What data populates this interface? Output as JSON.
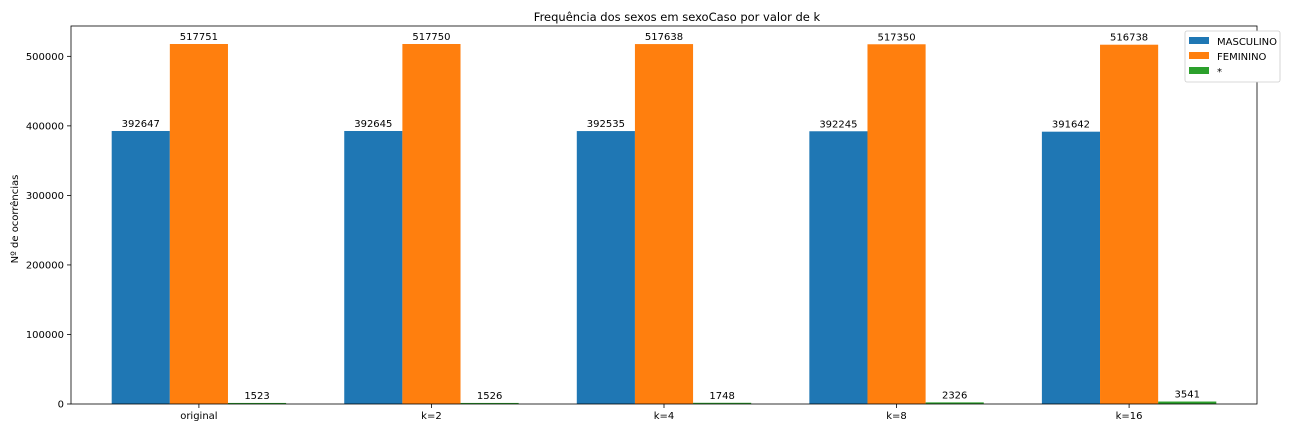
{
  "chart_data": {
    "type": "bar",
    "title": "Frequência dos sexos em sexoCaso por valor de k",
    "xlabel": "",
    "ylabel": "Nº de ocorrências",
    "categories": [
      "original",
      "k=2",
      "k=4",
      "k=8",
      "k=16"
    ],
    "series": [
      {
        "name": "MASCULINO",
        "color": "#1f77b4",
        "values": [
          392647,
          392645,
          392535,
          392245,
          391642
        ]
      },
      {
        "name": "FEMININO",
        "color": "#ff7f0e",
        "values": [
          517751,
          517750,
          517638,
          517350,
          516738
        ]
      },
      {
        "name": "*",
        "color": "#2ca02c",
        "values": [
          1523,
          1526,
          1748,
          2326,
          3541
        ]
      }
    ],
    "ylim": [
      0,
      543639
    ],
    "yticks": [
      0,
      100000,
      200000,
      300000,
      400000,
      500000
    ],
    "grid": false,
    "legend_position": "top-right"
  }
}
